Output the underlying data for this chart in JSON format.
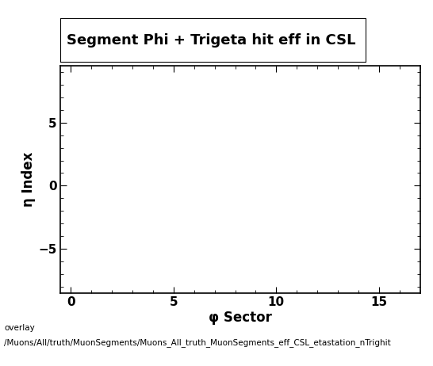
{
  "title": "Segment Phi + Trigeta hit eff in CSL",
  "xlabel": "φ Sector",
  "ylabel": "η Index",
  "xlim": [
    -0.5,
    17
  ],
  "ylim": [
    -8.5,
    9.5
  ],
  "xticks": [
    0,
    5,
    10,
    15
  ],
  "yticks": [
    -5,
    0,
    5
  ],
  "caption_line1": "overlay",
  "caption_line2": "/Muons/All/truth/MuonSegments/Muons_All_truth_MuonSegments_eff_CSL_etastation_nTrighit",
  "bg_color": "#ffffff",
  "legend_box_color": "#ffffff",
  "legend_box_edgecolor": "#000000",
  "title_fontsize": 13,
  "tick_fontsize": 11,
  "label_fontsize": 12,
  "caption_fontsize": 7.5
}
